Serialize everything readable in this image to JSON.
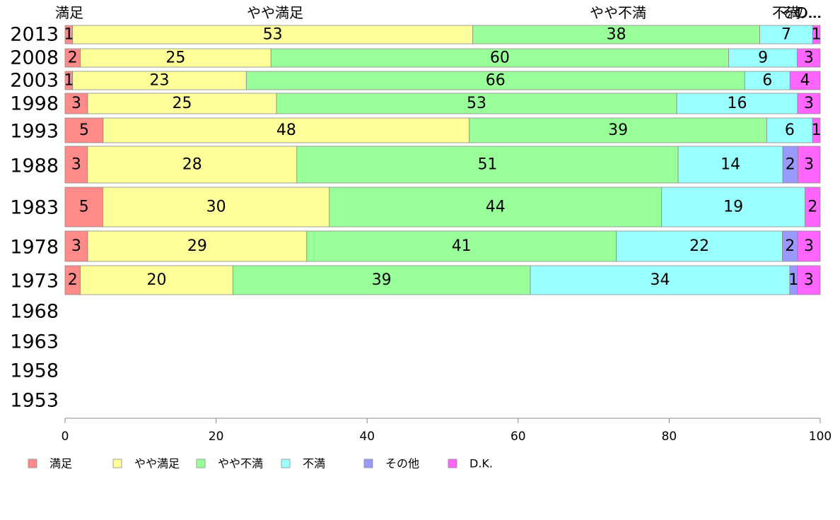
{
  "chart_data": {
    "type": "bar",
    "orientation": "horizontal",
    "stacked": true,
    "categories": [
      "2013",
      "2008",
      "2003",
      "1998",
      "1993",
      "1988",
      "1983",
      "1978",
      "1973",
      "1968",
      "1963",
      "1958",
      "1953"
    ],
    "series": [
      {
        "name": "満足",
        "color": "#ff8a8a",
        "values": [
          1,
          2,
          1,
          3,
          5,
          3,
          5,
          3,
          2,
          null,
          null,
          null,
          null
        ]
      },
      {
        "name": "やや満足",
        "color": "#ffff99",
        "values": [
          53,
          25,
          23,
          25,
          48,
          28,
          30,
          29,
          20,
          null,
          null,
          null,
          null
        ]
      },
      {
        "name": "やや不満",
        "color": "#99ff99",
        "values": [
          38,
          60,
          66,
          53,
          39,
          51,
          44,
          41,
          39,
          null,
          null,
          null,
          null
        ]
      },
      {
        "name": "不満",
        "color": "#99ffff",
        "values": [
          7,
          9,
          6,
          16,
          6,
          14,
          19,
          22,
          34,
          null,
          null,
          null,
          null
        ]
      },
      {
        "name": "その他",
        "color": "#9999ff",
        "values": [
          0,
          0,
          0,
          0,
          0,
          2,
          0,
          2,
          1,
          null,
          null,
          null,
          null
        ]
      },
      {
        "name": "D.K.",
        "color": "#ff66ff",
        "values": [
          1,
          3,
          4,
          3,
          1,
          3,
          2,
          3,
          3,
          null,
          null,
          null,
          null
        ]
      }
    ],
    "header_labels": [
      "満足",
      "やや満足",
      "やや不満",
      "不満",
      "その...",
      "D..."
    ],
    "xlim": [
      0,
      100
    ],
    "xticks": [
      "0",
      "20",
      "40",
      "60",
      "80",
      "100"
    ],
    "legend_position": "bottom-left",
    "grid": false
  }
}
